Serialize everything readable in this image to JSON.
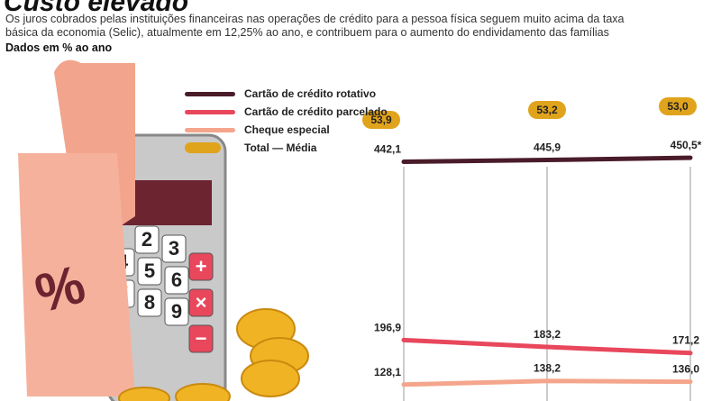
{
  "header": {
    "title": "Custo elevado",
    "subtitle": "Os juros cobrados pelas instituições financeiras nas operações de crédito para a pessoa física seguem muito acima da taxa básica da economia (Selic), atualmente em 12,25% ao ano, e contribuem para o aumento do endividamento das famílias",
    "units": "Dados em % ao ano"
  },
  "illustration": {
    "percent_sign": "%",
    "keys": [
      "4",
      "5",
      "6",
      "7",
      "8",
      "9",
      "2",
      "3",
      "+",
      "×",
      "−"
    ]
  },
  "chart_data": {
    "type": "line",
    "title": "Custo elevado",
    "xlabel": "",
    "ylabel": "Dados em % ao ano",
    "grid": true,
    "legend_position": "top-left",
    "x": [
      1,
      2,
      3
    ],
    "series": [
      {
        "name": "Cartão de crédito rotativo",
        "values": [
          442.1,
          445.9,
          450.5
        ],
        "labels": [
          "442,1",
          "445,9",
          "450,5*"
        ],
        "color": "#4a1c2a"
      },
      {
        "name": "Cartão de crédito parcelado",
        "values": [
          196.9,
          183.2,
          171.2
        ],
        "labels": [
          "196,9",
          "183,2",
          "171,2"
        ],
        "color": "#e8475c"
      },
      {
        "name": "Cheque especial",
        "values": [
          128.1,
          138.2,
          136.0
        ],
        "labels": [
          "128,1",
          "138,2",
          "136,0"
        ],
        "color": "#f4a58c"
      },
      {
        "name": "Total — Média",
        "values": [
          53.9,
          53.2,
          53.0
        ],
        "labels": [
          "53,9",
          "53,2",
          "53,0"
        ],
        "color": "#e0a31c"
      }
    ]
  }
}
